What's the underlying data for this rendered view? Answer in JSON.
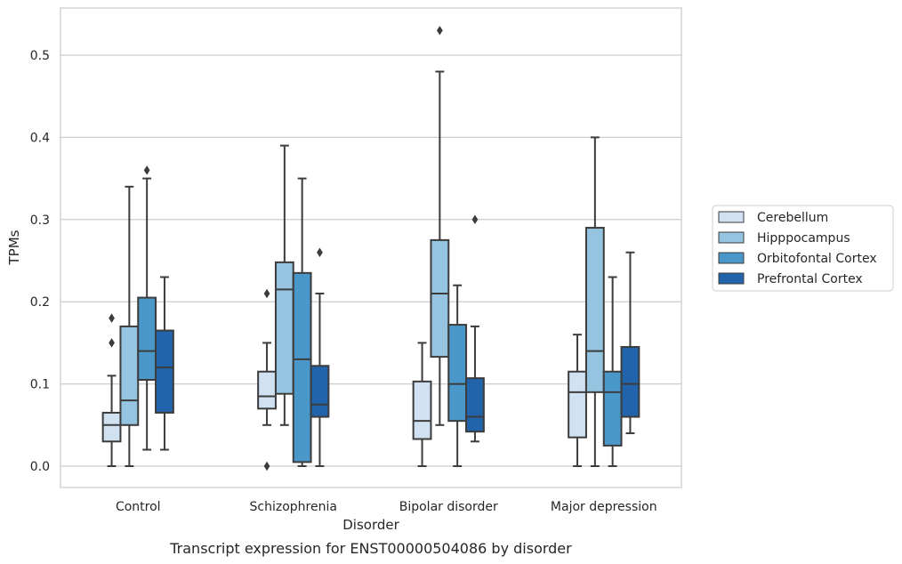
{
  "chart_data": {
    "type": "box",
    "xlabel": "Disorder",
    "ylabel": "TPMs",
    "caption": "Transcript expression for ENST00000504086 by disorder",
    "ylim": [
      -0.025,
      0.557
    ],
    "yticks": [
      "0.0",
      "0.1",
      "0.2",
      "0.3",
      "0.4",
      "0.5"
    ],
    "grid": "horizontal",
    "legend_position": "right",
    "categories": [
      "Control",
      "Schizophrenia",
      "Bipolar disorder",
      "Major depression"
    ],
    "series": [
      {
        "name": "Cerebellum",
        "color": "#d0e1f2",
        "boxes": [
          {
            "whislo": 0.0,
            "q1": 0.03,
            "med": 0.05,
            "q3": 0.065,
            "whishi": 0.11,
            "fliers": [
              0.15,
              0.18
            ]
          },
          {
            "whislo": 0.05,
            "q1": 0.07,
            "med": 0.085,
            "q3": 0.115,
            "whishi": 0.15,
            "fliers": [
              0.0,
              0.21
            ]
          },
          {
            "whislo": 0.0,
            "q1": 0.033,
            "med": 0.055,
            "q3": 0.103,
            "whishi": 0.15,
            "fliers": []
          },
          {
            "whislo": 0.0,
            "q1": 0.035,
            "med": 0.09,
            "q3": 0.115,
            "whishi": 0.16,
            "fliers": []
          }
        ]
      },
      {
        "name": "Hipppocampus",
        "color": "#94c4df",
        "boxes": [
          {
            "whislo": 0.0,
            "q1": 0.05,
            "med": 0.08,
            "q3": 0.17,
            "whishi": 0.34,
            "fliers": []
          },
          {
            "whislo": 0.05,
            "q1": 0.088,
            "med": 0.215,
            "q3": 0.248,
            "whishi": 0.39,
            "fliers": []
          },
          {
            "whislo": 0.05,
            "q1": 0.133,
            "med": 0.21,
            "q3": 0.275,
            "whishi": 0.48,
            "fliers": [
              0.53
            ]
          },
          {
            "whislo": 0.0,
            "q1": 0.09,
            "med": 0.14,
            "q3": 0.29,
            "whishi": 0.4,
            "fliers": []
          }
        ]
      },
      {
        "name": "Orbitofontal Cortex",
        "color": "#4a98c9",
        "boxes": [
          {
            "whislo": 0.02,
            "q1": 0.105,
            "med": 0.14,
            "q3": 0.205,
            "whishi": 0.35,
            "fliers": [
              0.36
            ]
          },
          {
            "whislo": 0.0,
            "q1": 0.005,
            "med": 0.13,
            "q3": 0.235,
            "whishi": 0.35,
            "fliers": []
          },
          {
            "whislo": 0.0,
            "q1": 0.055,
            "med": 0.1,
            "q3": 0.172,
            "whishi": 0.22,
            "fliers": []
          },
          {
            "whislo": 0.0,
            "q1": 0.025,
            "med": 0.09,
            "q3": 0.115,
            "whishi": 0.23,
            "fliers": []
          }
        ]
      },
      {
        "name": "Prefrontal Cortex",
        "color": "#2164ab",
        "boxes": [
          {
            "whislo": 0.02,
            "q1": 0.065,
            "med": 0.12,
            "q3": 0.165,
            "whishi": 0.23,
            "fliers": []
          },
          {
            "whislo": 0.0,
            "q1": 0.06,
            "med": 0.075,
            "q3": 0.122,
            "whishi": 0.21,
            "fliers": [
              0.26
            ]
          },
          {
            "whislo": 0.03,
            "q1": 0.042,
            "med": 0.06,
            "q3": 0.107,
            "whishi": 0.17,
            "fliers": [
              0.3
            ]
          },
          {
            "whislo": 0.04,
            "q1": 0.06,
            "med": 0.1,
            "q3": 0.145,
            "whishi": 0.26,
            "fliers": []
          }
        ]
      }
    ]
  }
}
